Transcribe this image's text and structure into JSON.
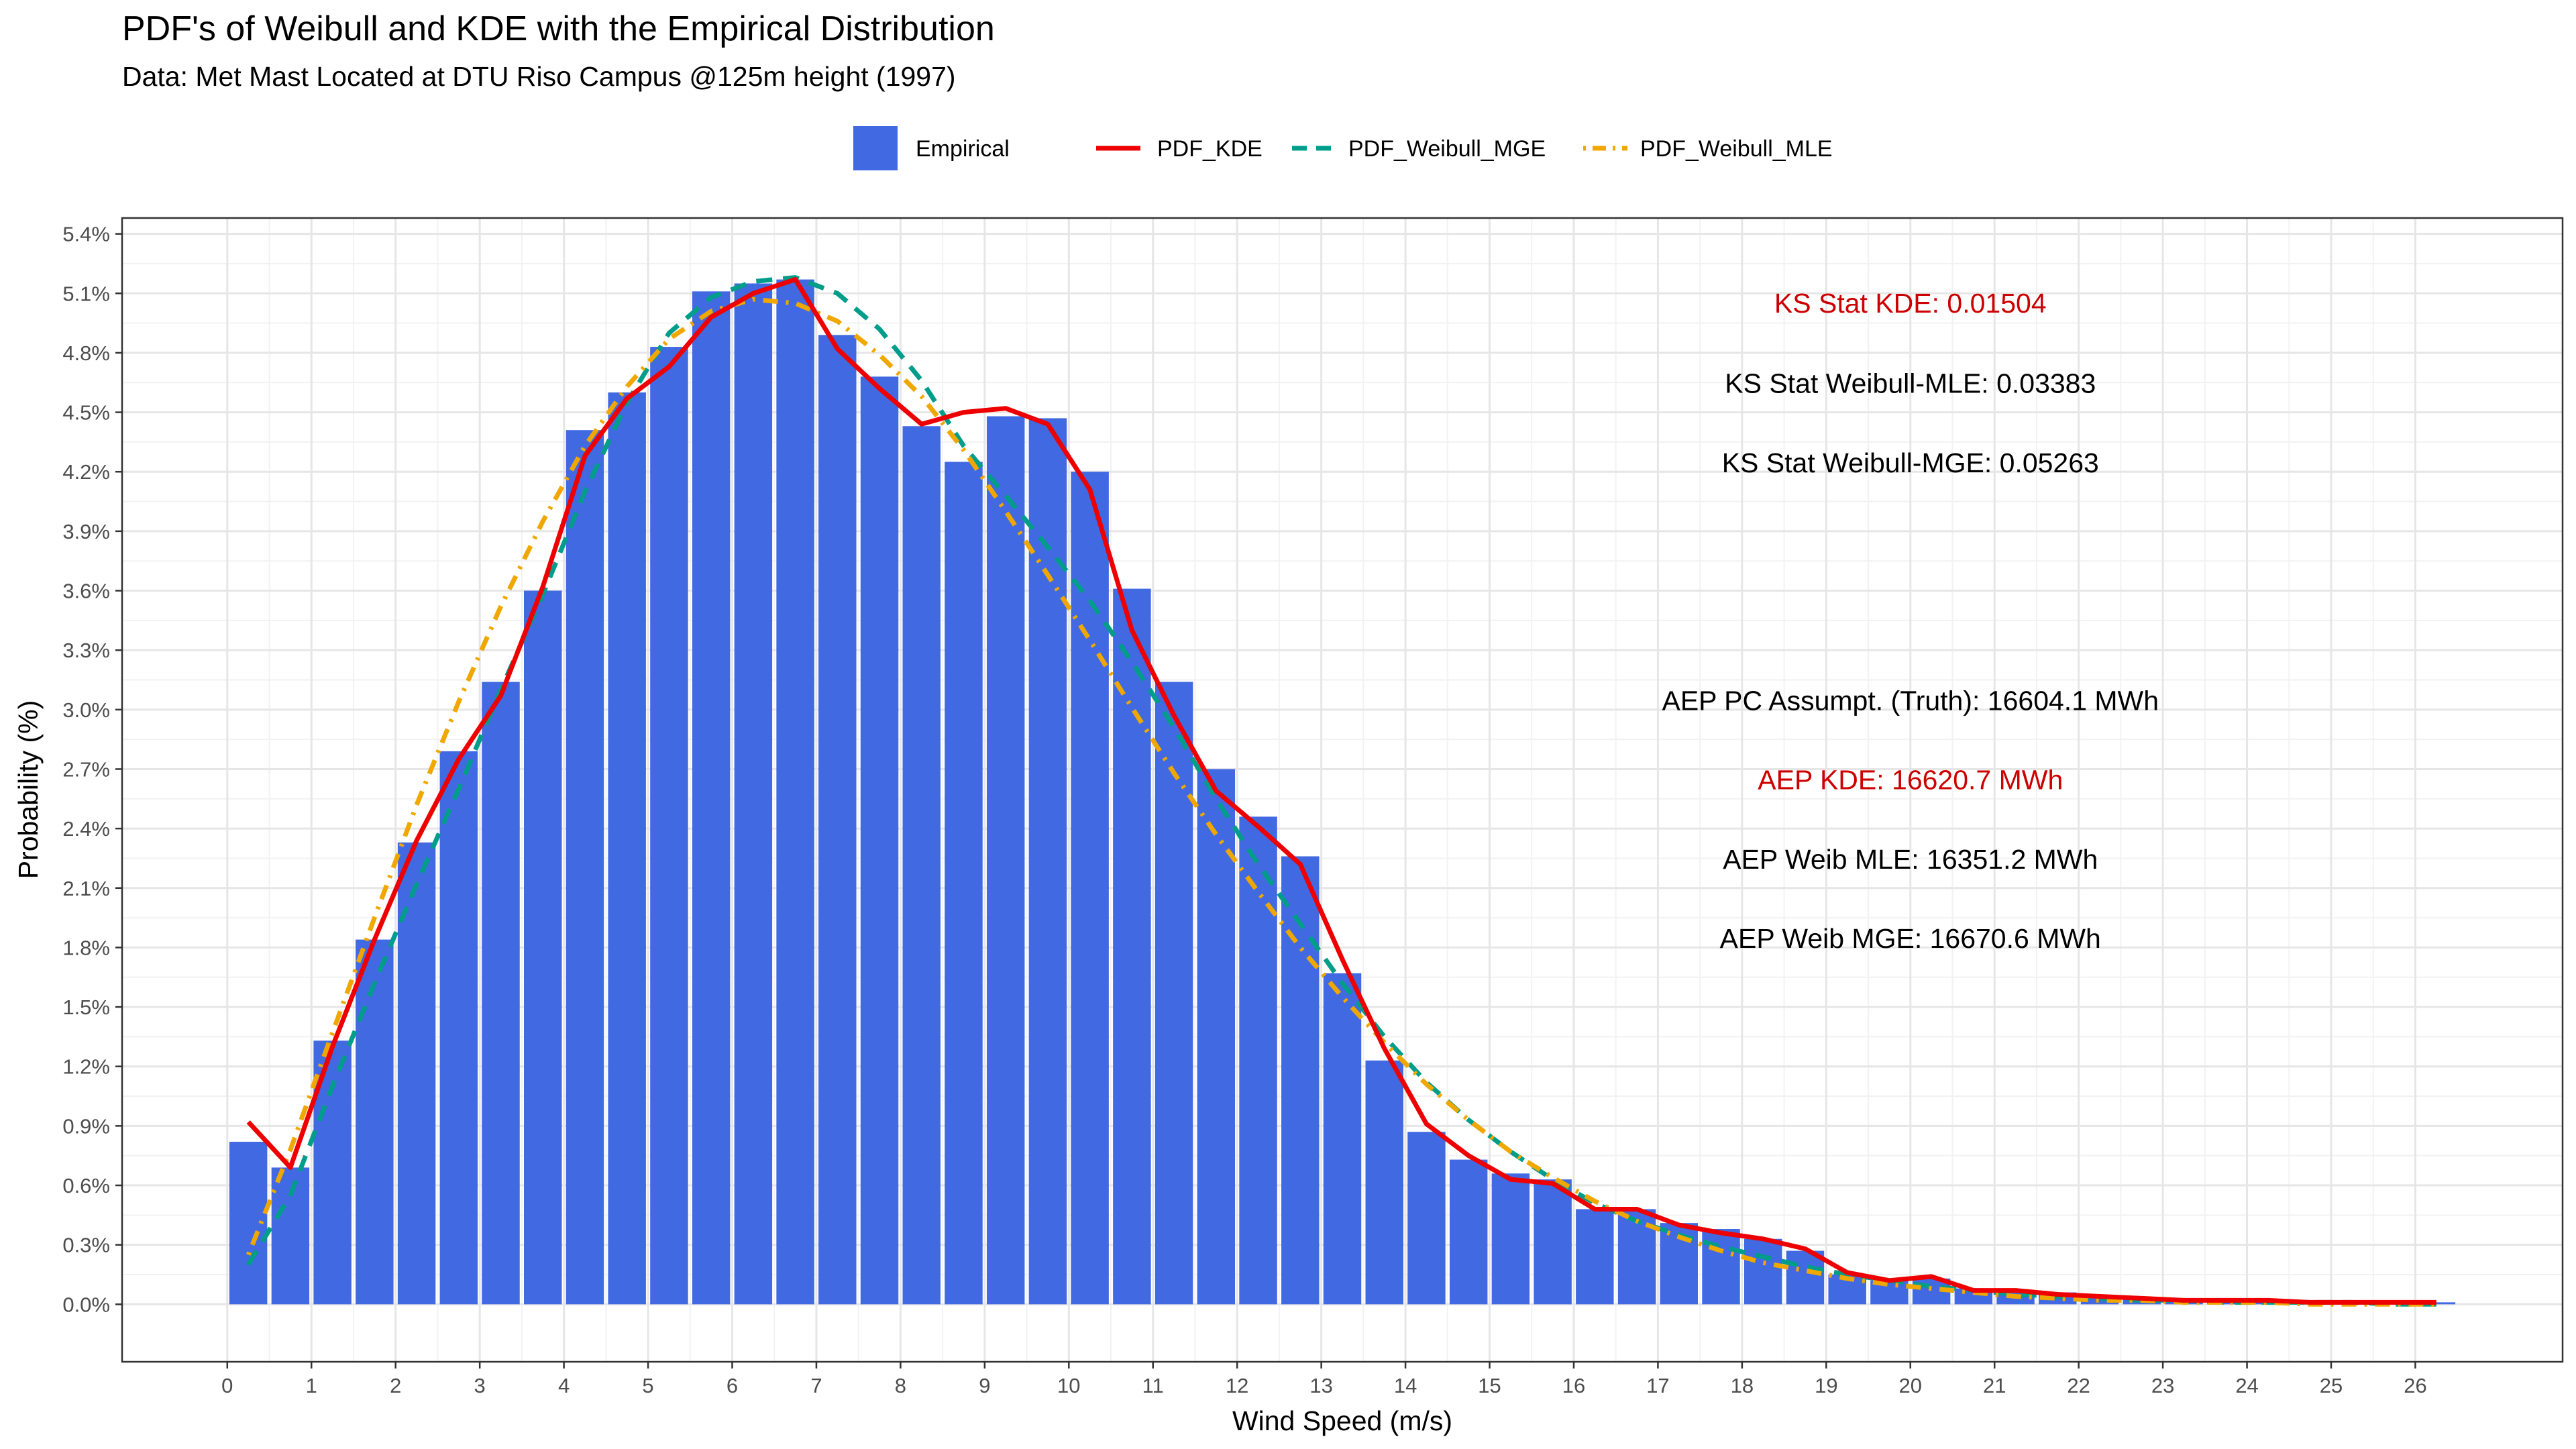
{
  "chart_data": {
    "type": "bar",
    "title": "PDF's of Weibull and KDE with the Empirical Distribution",
    "subtitle": "Data: Met Mast Located at DTU Riso Campus @125m height (1997)",
    "xlabel": "Wind Speed (m/s)",
    "ylabel": "Probability (%)",
    "xlim": [
      -1.25,
      27.75
    ],
    "ylim": [
      -0.29,
      5.48
    ],
    "x_ticks": [
      0,
      1,
      2,
      3,
      4,
      5,
      6,
      7,
      8,
      9,
      10,
      11,
      12,
      13,
      14,
      15,
      16,
      17,
      18,
      19,
      20,
      21,
      22,
      23,
      24,
      25,
      26
    ],
    "y_ticks": [
      0.0,
      0.3,
      0.6,
      0.9,
      1.2,
      1.5,
      1.8,
      2.1,
      2.4,
      2.7,
      3.0,
      3.3,
      3.6,
      3.9,
      4.2,
      4.5,
      4.8,
      5.1,
      5.4
    ],
    "y_tick_labels": [
      "0.0%",
      "0.3%",
      "0.6%",
      "0.9%",
      "1.2%",
      "1.5%",
      "1.8%",
      "2.1%",
      "2.4%",
      "2.7%",
      "3.0%",
      "3.3%",
      "3.6%",
      "3.9%",
      "4.2%",
      "4.5%",
      "4.8%",
      "5.1%",
      "5.4%"
    ],
    "grid": true,
    "legend_position": "top",
    "legend": [
      {
        "name": "Empirical",
        "kind": "fill",
        "color": "#4169E1"
      },
      {
        "name": "PDF_KDE",
        "kind": "solid",
        "color": "#EE0000"
      },
      {
        "name": "PDF_Weibull_MGE",
        "kind": "dashed",
        "color": "#009E8A"
      },
      {
        "name": "PDF_Weibull_MLE",
        "kind": "dotdash",
        "color": "#F0A800"
      }
    ],
    "bar_width": 0.45,
    "empirical": {
      "name": "Empirical",
      "x": [
        0.25,
        0.75,
        1.25,
        1.75,
        2.25,
        2.75,
        3.25,
        3.75,
        4.25,
        4.75,
        5.25,
        5.75,
        6.25,
        6.75,
        7.25,
        7.75,
        8.25,
        8.75,
        9.25,
        9.75,
        10.25,
        10.75,
        11.25,
        11.75,
        12.25,
        12.75,
        13.25,
        13.75,
        14.25,
        14.75,
        15.25,
        15.75,
        16.25,
        16.75,
        17.25,
        17.75,
        18.25,
        18.75,
        19.25,
        19.75,
        20.25,
        20.75,
        21.25,
        21.75,
        22.25,
        22.75,
        23.25,
        23.75,
        24.25,
        24.75,
        25.25,
        25.75,
        26.25
      ],
      "values": [
        0.82,
        0.69,
        1.33,
        1.84,
        2.33,
        2.79,
        3.14,
        3.6,
        4.41,
        4.6,
        4.83,
        5.11,
        5.15,
        5.17,
        4.89,
        4.68,
        4.43,
        4.25,
        4.48,
        4.47,
        4.2,
        3.61,
        3.14,
        2.7,
        2.46,
        2.26,
        1.67,
        1.23,
        0.87,
        0.73,
        0.66,
        0.63,
        0.48,
        0.48,
        0.41,
        0.38,
        0.33,
        0.27,
        0.15,
        0.12,
        0.13,
        0.08,
        0.07,
        0.06,
        0.04,
        0.03,
        0.03,
        0.02,
        0.02,
        0.01,
        0.01,
        0.01,
        0.01
      ]
    },
    "series": [
      {
        "name": "PDF_KDE",
        "x": [
          0.25,
          0.75,
          1.25,
          1.75,
          2.25,
          2.75,
          3.25,
          3.75,
          4.25,
          4.75,
          5.25,
          5.75,
          6.25,
          6.75,
          7.25,
          7.75,
          8.25,
          8.75,
          9.25,
          9.75,
          10.25,
          10.75,
          11.25,
          11.75,
          12.25,
          12.75,
          13.25,
          13.75,
          14.25,
          14.75,
          15.25,
          15.75,
          16.25,
          16.75,
          17.25,
          17.75,
          18.25,
          18.75,
          19.25,
          19.75,
          20.25,
          20.75,
          21.25,
          21.75,
          22.25,
          22.75,
          23.25,
          23.75,
          24.25,
          24.75,
          25.25,
          25.75,
          26.25
        ],
        "values": [
          0.92,
          0.69,
          1.3,
          1.84,
          2.34,
          2.75,
          3.07,
          3.62,
          4.28,
          4.57,
          4.73,
          4.98,
          5.1,
          5.17,
          4.82,
          4.62,
          4.44,
          4.5,
          4.52,
          4.44,
          4.11,
          3.4,
          2.97,
          2.59,
          2.41,
          2.22,
          1.74,
          1.29,
          0.91,
          0.75,
          0.63,
          0.61,
          0.48,
          0.48,
          0.4,
          0.36,
          0.33,
          0.28,
          0.16,
          0.12,
          0.14,
          0.07,
          0.07,
          0.05,
          0.04,
          0.03,
          0.02,
          0.02,
          0.02,
          0.01,
          0.01,
          0.01,
          0.01
        ]
      },
      {
        "name": "PDF_Weibull_MGE",
        "x": [
          0.25,
          0.75,
          1.25,
          1.75,
          2.25,
          2.75,
          3.25,
          3.75,
          4.25,
          4.75,
          5.25,
          5.75,
          6.25,
          6.75,
          7.25,
          7.75,
          8.25,
          8.75,
          9.25,
          9.75,
          10.25,
          10.75,
          11.25,
          11.75,
          12.25,
          12.75,
          13.25,
          13.75,
          14.25,
          14.75,
          15.25,
          15.75,
          16.25,
          16.75,
          17.25,
          17.75,
          18.25,
          18.75,
          19.25,
          19.75,
          20.25,
          20.75,
          21.25,
          21.75,
          22.25,
          22.75,
          23.25,
          23.75,
          24.25,
          24.75,
          25.25,
          25.75,
          26.25
        ],
        "values": [
          0.2,
          0.55,
          1.1,
          1.62,
          2.12,
          2.6,
          3.1,
          3.58,
          4.1,
          4.55,
          4.9,
          5.08,
          5.16,
          5.18,
          5.1,
          4.92,
          4.66,
          4.33,
          4.08,
          3.82,
          3.55,
          3.24,
          2.91,
          2.55,
          2.22,
          1.92,
          1.62,
          1.35,
          1.12,
          0.93,
          0.77,
          0.63,
          0.51,
          0.42,
          0.35,
          0.29,
          0.24,
          0.19,
          0.15,
          0.12,
          0.09,
          0.07,
          0.05,
          0.04,
          0.03,
          0.02,
          0.02,
          0.01,
          0.01,
          0.01,
          0.01,
          0.0,
          0.0
        ]
      },
      {
        "name": "PDF_Weibull_MLE",
        "x": [
          0.25,
          0.75,
          1.25,
          1.75,
          2.25,
          2.75,
          3.25,
          3.75,
          4.25,
          4.75,
          5.25,
          5.75,
          6.25,
          6.75,
          7.25,
          7.75,
          8.25,
          8.75,
          9.25,
          9.75,
          10.25,
          10.75,
          11.25,
          11.75,
          12.25,
          12.75,
          13.25,
          13.75,
          14.25,
          14.75,
          15.25,
          15.75,
          16.25,
          16.75,
          17.25,
          17.75,
          18.25,
          18.75,
          19.25,
          19.75,
          20.25,
          20.75,
          21.25,
          21.75,
          22.25,
          22.75,
          23.25,
          23.75,
          24.25,
          24.75,
          25.25,
          25.75,
          26.25
        ],
        "values": [
          0.25,
          0.78,
          1.37,
          1.95,
          2.52,
          3.04,
          3.52,
          3.95,
          4.33,
          4.63,
          4.87,
          5.01,
          5.07,
          5.05,
          4.96,
          4.79,
          4.58,
          4.31,
          4.0,
          3.68,
          3.35,
          3.01,
          2.68,
          2.37,
          2.08,
          1.8,
          1.55,
          1.32,
          1.11,
          0.93,
          0.77,
          0.64,
          0.52,
          0.42,
          0.34,
          0.27,
          0.21,
          0.17,
          0.13,
          0.1,
          0.08,
          0.06,
          0.04,
          0.03,
          0.02,
          0.02,
          0.01,
          0.01,
          0.01,
          0.0,
          0.0,
          0.0,
          0.0
        ]
      }
    ],
    "annotations": [
      {
        "text": "KS Stat KDE: 0.01504",
        "x": 20.0,
        "y": 5.05,
        "color": "#CC0000"
      },
      {
        "text": "KS Stat Weibull-MLE: 0.03383",
        "x": 20.0,
        "y": 4.645,
        "color": "#000000"
      },
      {
        "text": "KS Stat Weibull-MGE: 0.05263",
        "x": 20.0,
        "y": 4.245,
        "color": "#000000"
      },
      {
        "text": "AEP PC Assumpt. (Truth): 16604.1 MWh",
        "x": 20.0,
        "y": 3.045,
        "color": "#000000"
      },
      {
        "text": "AEP KDE: 16620.7 MWh",
        "x": 20.0,
        "y": 2.645,
        "color": "#CC0000"
      },
      {
        "text": "AEP Weib MLE: 16351.2 MWh",
        "x": 20.0,
        "y": 2.245,
        "color": "#000000"
      },
      {
        "text": "AEP Weib MGE: 16670.6 MWh",
        "x": 20.0,
        "y": 1.845,
        "color": "#000000"
      }
    ]
  }
}
